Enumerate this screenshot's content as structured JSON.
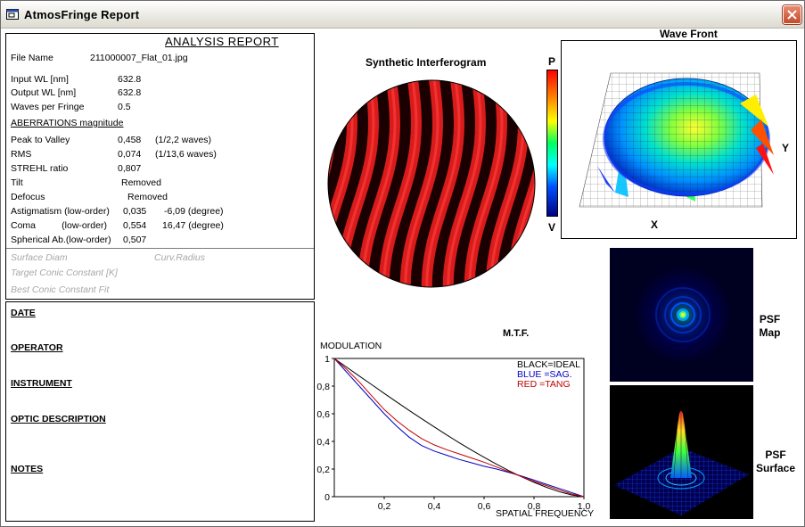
{
  "window": {
    "title": "AtmosFringe  Report",
    "close_icon": "close-icon"
  },
  "report": {
    "heading": "ANALYSIS  REPORT",
    "file_name_label": "File Name",
    "file_name_value": "211000007_Flat_01.jpg",
    "input_wl_label": "Input  WL [nm]",
    "input_wl_value": "632.8",
    "output_wl_label": "Output WL [nm]",
    "output_wl_value": "632.8",
    "waves_per_fringe_label": "Waves per Fringe",
    "waves_per_fringe_value": "0.5",
    "aberrations_heading": "ABERRATIONS magnitude",
    "ptv_label": "Peak to Valley",
    "ptv_value": "0,458",
    "ptv_waves": "(1/2,2 waves)",
    "rms_label": "RMS",
    "rms_value": "0,074",
    "rms_waves": "(1/13,6 waves)",
    "strehl_label": "STREHL ratio",
    "strehl_value": "0,807",
    "tilt_label": "Tilt",
    "tilt_value": "Removed",
    "defocus_label": "Defocus",
    "defocus_value": "Removed",
    "astig_label": "Astigmatism  (low-order)",
    "astig_value": "0,035",
    "astig_angle": "-6,09  (degree)",
    "coma_label": "Coma          (low-order)",
    "coma_value": "0,554",
    "coma_angle": "16,47  (degree)",
    "spherical_label": "Spherical Ab.(low-order)",
    "spherical_value": "0,507",
    "surface_diam_label": "Surface Diam",
    "curv_radius_label": "Curv.Radius",
    "target_conic_label": "Target Conic Constant [K]",
    "best_conic_label": "Best Conic Constant Fit"
  },
  "info": {
    "date": "DATE",
    "operator": "OPERATOR",
    "instrument": "INSTRUMENT",
    "optic_description": "OPTIC DESCRIPTION",
    "notes": "NOTES"
  },
  "interferogram": {
    "title": "Synthetic Interferogram"
  },
  "wavefront": {
    "title": "Wave Front",
    "scale_top": "P",
    "scale_bottom": "V",
    "axis_x": "X",
    "axis_y": "Y"
  },
  "psf": {
    "map_label_1": "PSF",
    "map_label_2": "Map",
    "surface_label_1": "PSF",
    "surface_label_2": "Surface"
  },
  "chart_data": {
    "type": "line",
    "title": "M.T.F.",
    "ylabel": "MODULATION",
    "xlabel": "SPATIAL FREQUENCY",
    "xlim": [
      0,
      1
    ],
    "ylim": [
      0,
      1
    ],
    "x_ticks": [
      "0,2",
      "0,4",
      "0,6",
      "0,8",
      "1,0"
    ],
    "y_ticks": [
      "0",
      "0,2",
      "0,4",
      "0,6",
      "0,8",
      "1"
    ],
    "legend": [
      "BLACK=IDEAL",
      "BLUE  =SAG.",
      "RED    =TANG"
    ],
    "legend_colors": [
      "#000000",
      "#0000c0",
      "#c00000"
    ],
    "x": [
      0,
      0.05,
      0.1,
      0.15,
      0.2,
      0.25,
      0.3,
      0.35,
      0.4,
      0.45,
      0.5,
      0.55,
      0.6,
      0.65,
      0.7,
      0.75,
      0.8,
      0.85,
      0.9,
      0.95,
      1.0
    ],
    "series": [
      {
        "name": "IDEAL",
        "color": "#000000",
        "values": [
          1.0,
          0.936,
          0.873,
          0.81,
          0.747,
          0.685,
          0.624,
          0.564,
          0.505,
          0.447,
          0.391,
          0.337,
          0.285,
          0.235,
          0.188,
          0.144,
          0.104,
          0.068,
          0.037,
          0.013,
          0.0
        ]
      },
      {
        "name": "SAG.",
        "color": "#0000c0",
        "values": [
          1.0,
          0.9,
          0.8,
          0.7,
          0.6,
          0.51,
          0.43,
          0.37,
          0.33,
          0.3,
          0.27,
          0.245,
          0.22,
          0.2,
          0.175,
          0.15,
          0.12,
          0.09,
          0.06,
          0.03,
          0.0
        ]
      },
      {
        "name": "TANG",
        "color": "#c00000",
        "values": [
          1.0,
          0.92,
          0.83,
          0.73,
          0.63,
          0.55,
          0.48,
          0.42,
          0.375,
          0.34,
          0.31,
          0.28,
          0.25,
          0.215,
          0.18,
          0.145,
          0.11,
          0.08,
          0.05,
          0.02,
          0.0
        ]
      }
    ]
  }
}
